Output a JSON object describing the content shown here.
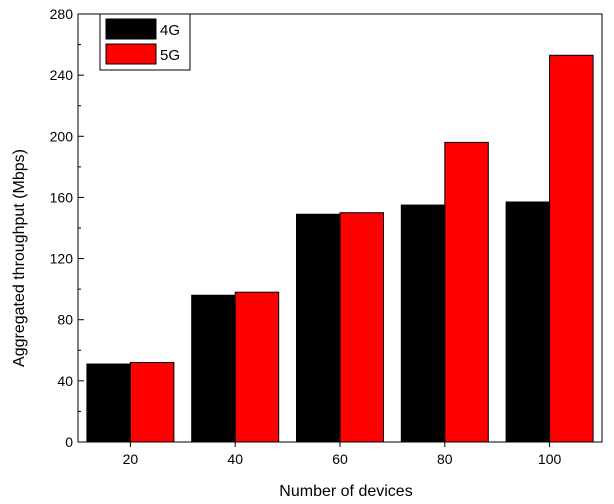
{
  "chart_data": {
    "type": "bar",
    "title": "",
    "xlabel": "Number of devices",
    "ylabel": "Aggregated throughput (Mbps)",
    "categories": [
      "20",
      "40",
      "60",
      "80",
      "100"
    ],
    "ylim": [
      0,
      280
    ],
    "yticks": [
      "0",
      "40",
      "80",
      "120",
      "160",
      "200",
      "240",
      "280"
    ],
    "grid": false,
    "legend_position": "top-left",
    "series": [
      {
        "name": "4G",
        "color": "#000000",
        "values": [
          51,
          96,
          149,
          155,
          157
        ]
      },
      {
        "name": "5G",
        "color": "#ff0000",
        "values": [
          52,
          98,
          150,
          196,
          253
        ]
      }
    ]
  }
}
